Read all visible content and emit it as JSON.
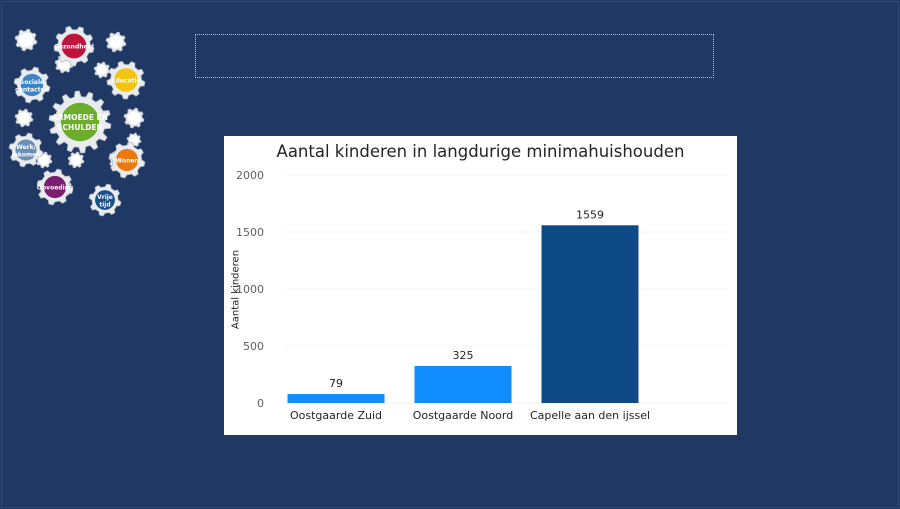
{
  "logo": {
    "center_label_line1": "ARMOEDE EN",
    "center_label_line2": "SCHULDEN",
    "gears": [
      {
        "label_line1": "Gezondheid",
        "label_line2": "",
        "color": "#c0143c"
      },
      {
        "label_line1": "Educatie",
        "label_line2": "",
        "color": "#f2c511"
      },
      {
        "label_line1": "Wonen",
        "label_line2": "",
        "color": "#ea7a10"
      },
      {
        "label_line1": "Vrije",
        "label_line2": "tijd",
        "color": "#1b4f8a"
      },
      {
        "label_line1": "Opvoeding",
        "label_line2": "",
        "color": "#7a1e72"
      },
      {
        "label_line1": "Werk/",
        "label_line2": "inkomen",
        "color": "#6a8fb5"
      },
      {
        "label_line1": "Sociale",
        "label_line2": "contacten",
        "color": "#3d84c4"
      }
    ],
    "center_color": "#6cae2b"
  },
  "chart_data": {
    "type": "bar",
    "title": "Aantal kinderen in langdurige minimahuishouden",
    "xlabel": "",
    "ylabel": "Aantal kinderen",
    "categories": [
      "Oostgaarde Zuid",
      "Oostgaarde Noord",
      "Capelle aan den ijssel"
    ],
    "values": [
      79,
      325,
      1559
    ],
    "data_labels": [
      "79",
      "325",
      "1559"
    ],
    "bar_colors": [
      "#118dff",
      "#118dff",
      "#0e4a86"
    ],
    "ylim": [
      0,
      2000
    ],
    "yticks": [
      0,
      500,
      1000,
      1500,
      2000
    ],
    "ytick_labels": [
      "0",
      "500",
      "1000",
      "1500",
      "2000"
    ],
    "grid": true,
    "legend": "none"
  }
}
